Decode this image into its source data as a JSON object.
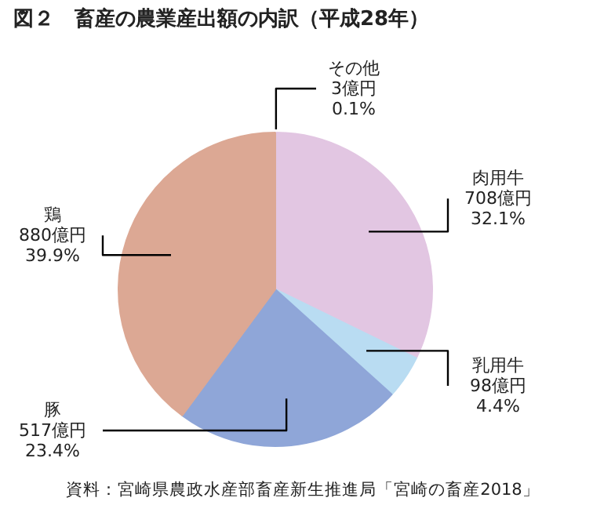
{
  "chart_data": {
    "type": "pie",
    "title": "図２　畜産の農業産出額の内訳（平成28年）",
    "categories": [
      "その他",
      "肉用牛",
      "乳用牛",
      "豚",
      "鶏"
    ],
    "values": [
      3,
      708,
      98,
      517,
      880
    ],
    "value_labels": [
      "3億円\n0.1%",
      "708億円\n32.1%",
      "98億円\n4.4%",
      "517億円\n23.4%",
      "880億円\n39.9%"
    ],
    "colors": [
      "#f2e6f0",
      "#e2c6e2",
      "#b9dcf2",
      "#8fa6d8",
      "#dca894"
    ],
    "annotations": [
      "資料：宮崎県農政水産部畜産新生推進局「宮崎の畜産2018」"
    ]
  }
}
